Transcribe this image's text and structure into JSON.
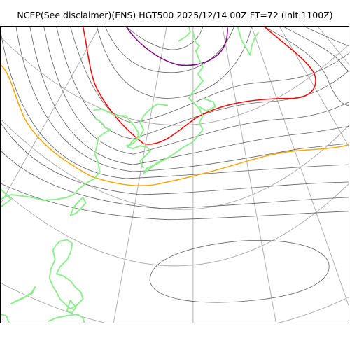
{
  "title": "NCEP(See disclaimer)(ENS) HGT500 2025/12/14 00Z FT=72 (init 1100Z)",
  "colors": {
    "graticule": "#b0b0b0",
    "contour": "#606060",
    "coastline": "#90ee90",
    "contour_5400": "#ffa500",
    "contour_5700": "#ff0000",
    "contour_5100": "#800080",
    "frame": "#000000"
  }
}
